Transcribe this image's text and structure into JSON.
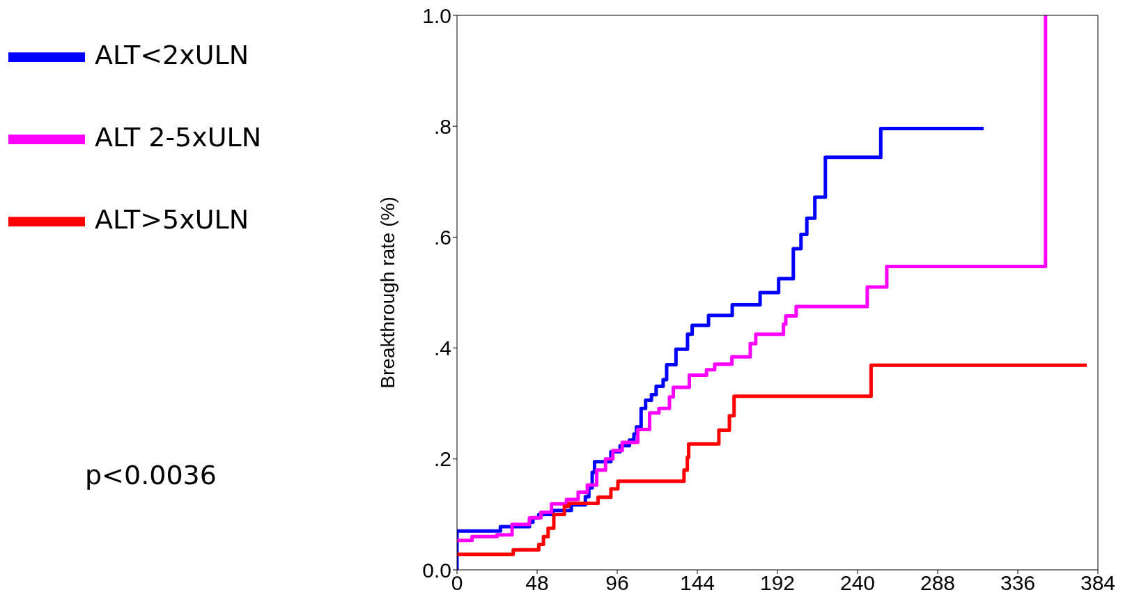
{
  "chart_data": {
    "type": "step",
    "ylabel": "Breakthrough rate (%)",
    "xlim": [
      0,
      384
    ],
    "xticks": [
      0,
      48,
      96,
      144,
      192,
      240,
      288,
      336,
      384
    ],
    "ylim": [
      0,
      1
    ],
    "yticks": [
      {
        "value": 0,
        "label": "0.0"
      },
      {
        "value": 0.2,
        "label": ".2"
      },
      {
        "value": 0.4,
        "label": ".4"
      },
      {
        "value": 0.6,
        "label": ".6"
      },
      {
        "value": 0.8,
        "label": ".8"
      },
      {
        "value": 1,
        "label": "1.0"
      }
    ],
    "legend": "top left",
    "annotations": [
      "p<0.0036"
    ],
    "series": [
      {
        "name": "ALT<2xULN",
        "color": "#0000ff",
        "x": [
          0,
          0,
          26,
          43.4,
          45.5,
          49,
          57.4,
          68.5,
          76.9,
          79,
          81,
          82.4,
          92.2,
          97.7,
          103.3,
          106,
          107.5,
          110.3,
          113,
          116.5,
          119.3,
          123.5,
          125.6,
          131.2,
          138.1,
          140.9,
          150.7,
          164.9,
          181.6,
          192.7,
          201.5,
          206.1,
          209.6,
          214.4,
          220.7,
          253.9,
          315.5
        ],
        "values": [
          0,
          0.07,
          0.078,
          0.086,
          0.094,
          0.1,
          0.107,
          0.117,
          0.132,
          0.148,
          0.176,
          0.195,
          0.213,
          0.224,
          0.234,
          0.245,
          0.258,
          0.291,
          0.306,
          0.316,
          0.331,
          0.343,
          0.37,
          0.398,
          0.425,
          0.441,
          0.459,
          0.478,
          0.5,
          0.525,
          0.579,
          0.605,
          0.634,
          0.672,
          0.744,
          0.796,
          0.796
        ]
      },
      {
        "name": "ALT 2-5xULN",
        "color": "#ff00ff",
        "x": [
          0,
          9,
          24,
          33,
          43.4,
          50.3,
          56.6,
          65.6,
          72.6,
          78.1,
          83.7,
          89,
          93.4,
          99,
          108.3,
          115.4,
          121,
          127.3,
          129.6,
          139.2,
          149.5,
          154.4,
          164.7,
          175.7,
          179,
          195.6,
          197,
          203.2,
          245.8,
          257.5,
          352.6
        ],
        "values": [
          0.053,
          0.06,
          0.063,
          0.082,
          0.094,
          0.104,
          0.119,
          0.127,
          0.14,
          0.153,
          0.18,
          0.2,
          0.215,
          0.23,
          0.253,
          0.283,
          0.291,
          0.312,
          0.329,
          0.351,
          0.361,
          0.371,
          0.384,
          0.408,
          0.425,
          0.443,
          0.458,
          0.475,
          0.51,
          0.547,
          1.0
        ]
      },
      {
        "name": "ALT>5xULN",
        "color": "#ff0000",
        "x": [
          0,
          33.7,
          49,
          51.8,
          54.6,
          58,
          64.3,
          67.1,
          84.5,
          92.2,
          96.4,
          136,
          138,
          138.8,
          156.9,
          163.2,
          166,
          248.1,
          377.3
        ],
        "values": [
          0.028,
          0.036,
          0.046,
          0.06,
          0.075,
          0.1,
          0.115,
          0.12,
          0.131,
          0.146,
          0.16,
          0.18,
          0.203,
          0.227,
          0.252,
          0.278,
          0.313,
          0.369,
          0.369
        ]
      }
    ]
  }
}
